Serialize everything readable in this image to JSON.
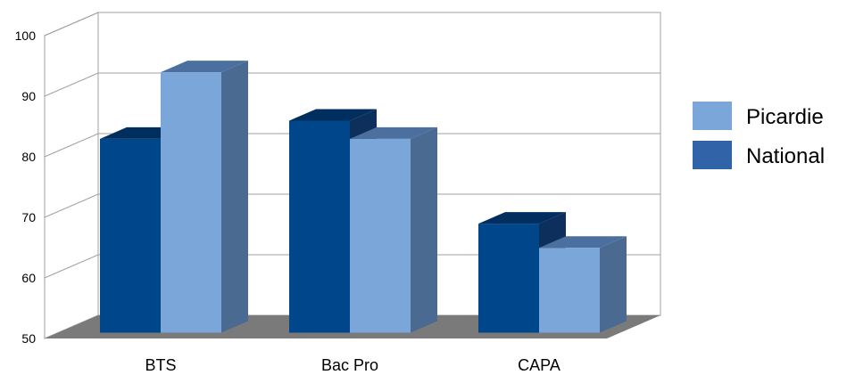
{
  "chart_data": {
    "type": "bar",
    "categories": [
      "BTS",
      "Bac Pro",
      "CAPA"
    ],
    "series": [
      {
        "name": "National",
        "values": [
          82,
          85,
          68
        ]
      },
      {
        "name": "Picardie",
        "values": [
          93,
          82,
          64
        ]
      }
    ],
    "legend_order": [
      "Picardie",
      "National"
    ],
    "ylim": [
      50,
      100
    ],
    "yticks": [
      50,
      60,
      70,
      80,
      90,
      100
    ],
    "grid": true,
    "legend": "right",
    "three_d": true,
    "colors": {
      "National": "#00468b",
      "National_side": "#0d2f5c",
      "National_top": "#002e5e",
      "Picardie": "#7aa6d9",
      "Picardie_side": "#4a6a92",
      "Picardie_top": "#4b6f9f",
      "National_legend": "#3063a8",
      "floor": "#7a7a7a",
      "grid": "#a0a0a0"
    }
  }
}
